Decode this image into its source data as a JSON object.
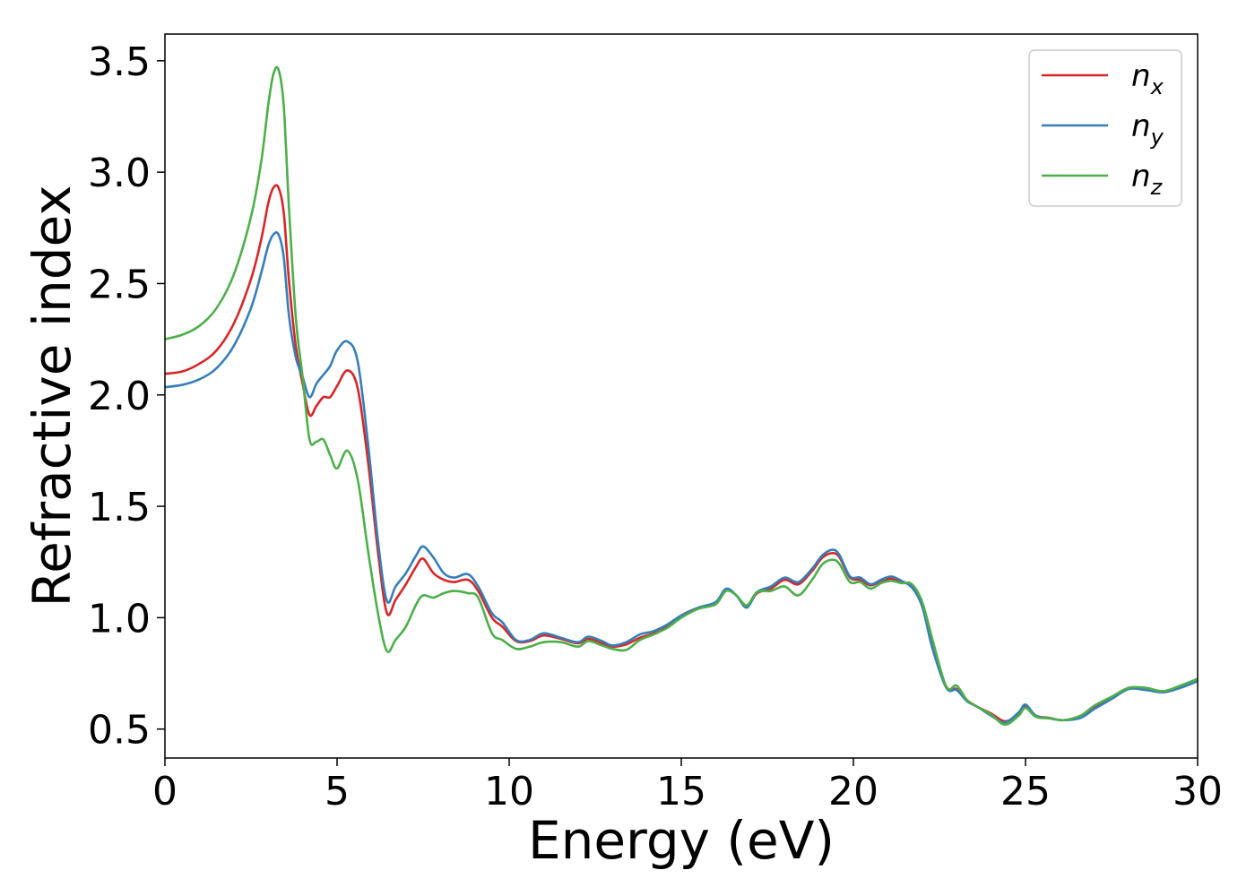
{
  "chart_data": {
    "type": "line",
    "xlabel": "Energy (eV)",
    "ylabel": "Refractive index",
    "xlim": [
      0,
      30
    ],
    "ylim": [
      0.37,
      3.62
    ],
    "xticks": [
      "0",
      "5",
      "10",
      "15",
      "20",
      "25",
      "30"
    ],
    "yticks": [
      "0.5",
      "1.0",
      "1.5",
      "2.0",
      "2.5",
      "3.0",
      "3.5"
    ],
    "grid": false,
    "legend_position": "top-right",
    "x": [
      0,
      0.5,
      1,
      1.5,
      2,
      2.5,
      2.8,
      3.0,
      3.15,
      3.3,
      3.45,
      3.6,
      3.8,
      4.0,
      4.2,
      4.4,
      4.6,
      4.8,
      5.0,
      5.3,
      5.6,
      5.9,
      6.2,
      6.45,
      6.7,
      7.0,
      7.3,
      7.5,
      7.8,
      8.1,
      8.4,
      8.8,
      9.1,
      9.5,
      9.8,
      10.2,
      10.6,
      11.0,
      11.5,
      12.0,
      12.3,
      12.7,
      13.0,
      13.4,
      13.8,
      14.2,
      14.6,
      15.0,
      15.5,
      16.0,
      16.3,
      16.6,
      16.9,
      17.2,
      17.6,
      18.0,
      18.4,
      18.8,
      19.1,
      19.4,
      19.6,
      19.9,
      20.2,
      20.5,
      20.8,
      21.1,
      21.4,
      21.7,
      22.0,
      22.3,
      22.7,
      23.0,
      23.3,
      23.6,
      24.0,
      24.4,
      24.8,
      25.0,
      25.3,
      25.7,
      26.1,
      26.6,
      27.0,
      27.5,
      28.0,
      28.5,
      29.0,
      29.5,
      30.0
    ],
    "series": [
      {
        "name": "n",
        "subscript": "x",
        "color": "#d62728",
        "values": [
          2.095,
          2.105,
          2.14,
          2.2,
          2.32,
          2.52,
          2.7,
          2.86,
          2.93,
          2.93,
          2.82,
          2.52,
          2.22,
          2.05,
          1.91,
          1.95,
          1.99,
          1.99,
          2.04,
          2.11,
          2.03,
          1.7,
          1.28,
          1.02,
          1.08,
          1.15,
          1.23,
          1.265,
          1.2,
          1.17,
          1.16,
          1.17,
          1.12,
          1.0,
          0.96,
          0.895,
          0.895,
          0.92,
          0.905,
          0.885,
          0.905,
          0.885,
          0.87,
          0.88,
          0.91,
          0.93,
          0.96,
          1.01,
          1.045,
          1.065,
          1.125,
          1.1,
          1.05,
          1.11,
          1.13,
          1.17,
          1.15,
          1.21,
          1.27,
          1.29,
          1.27,
          1.18,
          1.17,
          1.145,
          1.165,
          1.175,
          1.16,
          1.14,
          1.05,
          0.87,
          0.69,
          0.68,
          0.63,
          0.6,
          0.57,
          0.535,
          0.565,
          0.6,
          0.56,
          0.55,
          0.54,
          0.56,
          0.6,
          0.64,
          0.685,
          0.68,
          0.67,
          0.685,
          0.72
        ]
      },
      {
        "name": "n",
        "subscript": "y",
        "color": "#377eb8",
        "values": [
          2.035,
          2.045,
          2.07,
          2.12,
          2.22,
          2.39,
          2.55,
          2.67,
          2.72,
          2.72,
          2.62,
          2.36,
          2.17,
          2.08,
          1.99,
          2.05,
          2.09,
          2.13,
          2.2,
          2.24,
          2.15,
          1.78,
          1.33,
          1.075,
          1.14,
          1.2,
          1.28,
          1.32,
          1.27,
          1.2,
          1.18,
          1.195,
          1.14,
          1.02,
          0.98,
          0.9,
          0.9,
          0.93,
          0.91,
          0.89,
          0.915,
          0.895,
          0.875,
          0.89,
          0.925,
          0.94,
          0.97,
          1.01,
          1.045,
          1.07,
          1.13,
          1.1,
          1.045,
          1.115,
          1.14,
          1.18,
          1.16,
          1.22,
          1.28,
          1.305,
          1.28,
          1.185,
          1.18,
          1.15,
          1.17,
          1.185,
          1.165,
          1.135,
          1.05,
          0.86,
          0.685,
          0.675,
          0.625,
          0.6,
          0.56,
          0.53,
          0.575,
          0.61,
          0.56,
          0.548,
          0.54,
          0.55,
          0.59,
          0.635,
          0.68,
          0.675,
          0.665,
          0.685,
          0.715
        ]
      },
      {
        "name": "n",
        "subscript": "z",
        "color": "#4daf4a",
        "values": [
          2.25,
          2.27,
          2.31,
          2.39,
          2.54,
          2.8,
          3.05,
          3.3,
          3.44,
          3.46,
          3.3,
          2.85,
          2.35,
          2.08,
          1.8,
          1.79,
          1.8,
          1.73,
          1.67,
          1.75,
          1.62,
          1.3,
          1.01,
          0.85,
          0.9,
          0.96,
          1.06,
          1.1,
          1.09,
          1.11,
          1.12,
          1.11,
          1.09,
          0.93,
          0.9,
          0.86,
          0.87,
          0.89,
          0.89,
          0.87,
          0.895,
          0.875,
          0.86,
          0.855,
          0.9,
          0.925,
          0.955,
          1.0,
          1.04,
          1.06,
          1.12,
          1.1,
          1.055,
          1.115,
          1.12,
          1.14,
          1.1,
          1.17,
          1.24,
          1.26,
          1.24,
          1.16,
          1.16,
          1.13,
          1.155,
          1.165,
          1.155,
          1.15,
          1.07,
          0.9,
          0.69,
          0.695,
          0.63,
          0.6,
          0.565,
          0.52,
          0.56,
          0.595,
          0.555,
          0.548,
          0.54,
          0.56,
          0.605,
          0.645,
          0.685,
          0.685,
          0.67,
          0.695,
          0.725
        ]
      }
    ]
  }
}
